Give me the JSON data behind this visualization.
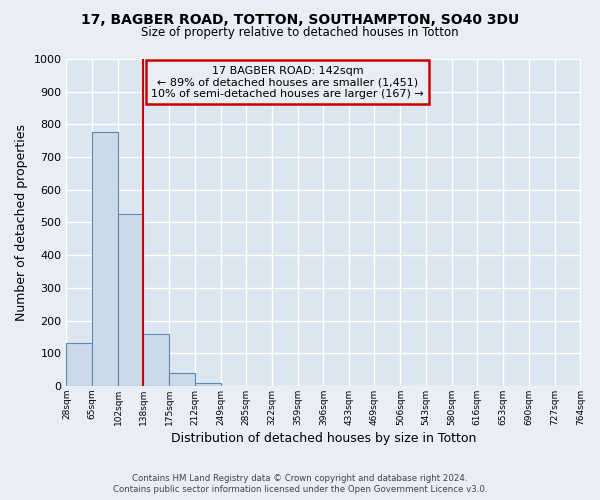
{
  "title_line1": "17, BAGBER ROAD, TOTTON, SOUTHAMPTON, SO40 3DU",
  "title_line2": "Size of property relative to detached houses in Totton",
  "xlabel": "Distribution of detached houses by size in Totton",
  "ylabel": "Number of detached properties",
  "footer_line1": "Contains HM Land Registry data © Crown copyright and database right 2024.",
  "footer_line2": "Contains public sector information licensed under the Open Government Licence v3.0.",
  "annotation_line1": "17 BAGBER ROAD: 142sqm",
  "annotation_line2": "← 89% of detached houses are smaller (1,451)",
  "annotation_line3": "10% of semi-detached houses are larger (167) →",
  "bar_edges": [
    28,
    65,
    102,
    138,
    175,
    212,
    249,
    285,
    322,
    359,
    396,
    433,
    469,
    506,
    543,
    580,
    616,
    653,
    690,
    727,
    764
  ],
  "bar_heights": [
    130,
    778,
    525,
    158,
    40,
    10,
    0,
    0,
    0,
    0,
    0,
    0,
    0,
    0,
    0,
    0,
    0,
    0,
    0,
    0
  ],
  "bar_color": "#ccd9e8",
  "bar_edge_color": "#5a8ab0",
  "marker_x": 138,
  "marker_color": "#cc0000",
  "ylim": [
    0,
    1000
  ],
  "xlim": [
    28,
    764
  ],
  "yticks": [
    0,
    100,
    200,
    300,
    400,
    500,
    600,
    700,
    800,
    900,
    1000
  ],
  "tick_labels": [
    "28sqm",
    "65sqm",
    "102sqm",
    "138sqm",
    "175sqm",
    "212sqm",
    "249sqm",
    "285sqm",
    "322sqm",
    "359sqm",
    "396sqm",
    "433sqm",
    "469sqm",
    "506sqm",
    "543sqm",
    "580sqm",
    "616sqm",
    "653sqm",
    "690sqm",
    "727sqm",
    "764sqm"
  ],
  "bg_color": "#e8eef4",
  "plot_bg_color": "#dce6f0",
  "grid_color": "#ffffff",
  "annotation_box_color": "#cc0000",
  "annotation_box_bg": "#e8eef4"
}
